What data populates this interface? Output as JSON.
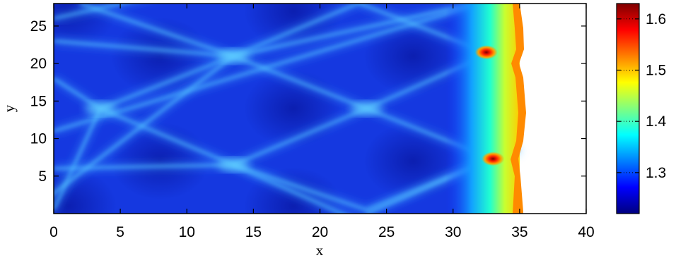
{
  "chart_data": {
    "type": "heatmap",
    "title": "",
    "xlabel": "x",
    "ylabel": "y",
    "xlim": [
      0,
      40
    ],
    "ylim": [
      0,
      28
    ],
    "xticks": [
      0,
      5,
      10,
      15,
      20,
      25,
      30,
      35,
      40
    ],
    "yticks": [
      5,
      10,
      15,
      20,
      25
    ],
    "colorbar": {
      "range": [
        1.22,
        1.63
      ],
      "ticks": [
        1.3,
        1.4,
        1.5,
        1.6
      ],
      "colormap": "jet"
    },
    "field": {
      "x_extent": [
        0,
        35
      ],
      "y_extent": [
        0,
        28
      ],
      "background_value": 1.24,
      "shock_front_x_range": [
        29.5,
        35
      ],
      "oblique_wave_crossings": [
        {
          "x": 3.5,
          "y": 14
        },
        {
          "x": 13.5,
          "y": 6.5
        },
        {
          "x": 13.5,
          "y": 21
        },
        {
          "x": 23.5,
          "y": 14
        }
      ],
      "triple_points": [
        {
          "x": 33,
          "y": 7.3,
          "value": 1.62
        },
        {
          "x": 32.5,
          "y": 21.5,
          "value": 1.62
        }
      ]
    }
  }
}
